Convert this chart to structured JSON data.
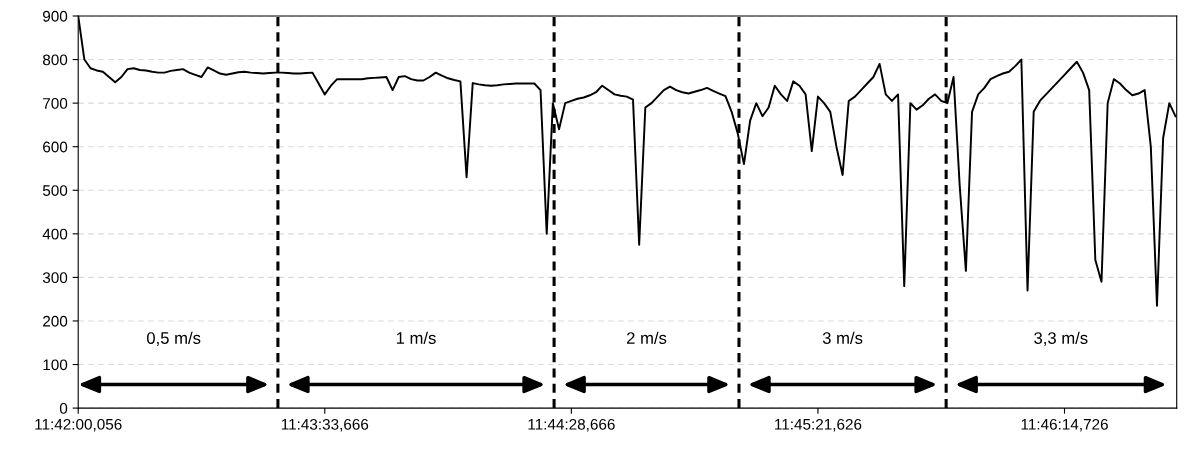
{
  "chart_data": {
    "type": "line",
    "categories": [
      "11:42:00,056",
      null,
      null,
      null,
      null,
      null,
      null,
      null,
      null,
      null,
      null,
      null,
      null,
      null,
      null,
      null,
      null,
      null,
      null,
      null,
      null,
      null,
      null,
      null,
      null,
      null,
      null,
      null,
      null,
      null,
      null,
      null,
      null,
      null,
      null,
      null,
      null,
      null,
      null,
      null,
      "11:43:33,666",
      null,
      null,
      null,
      null,
      null,
      null,
      null,
      null,
      null,
      null,
      null,
      null,
      null,
      null,
      null,
      null,
      null,
      null,
      null,
      null,
      null,
      null,
      null,
      null,
      null,
      null,
      null,
      null,
      null,
      null,
      null,
      null,
      null,
      null,
      null,
      null,
      null,
      null,
      null,
      "11:44:28,666",
      null,
      null,
      null,
      null,
      null,
      null,
      null,
      null,
      null,
      null,
      null,
      null,
      null,
      null,
      null,
      null,
      null,
      null,
      null,
      null,
      null,
      null,
      null,
      null,
      null,
      null,
      null,
      null,
      null,
      null,
      null,
      null,
      null,
      null,
      null,
      null,
      null,
      null,
      null,
      "11:45:21,626",
      null,
      null,
      null,
      null,
      null,
      null,
      null,
      null,
      null,
      null,
      null,
      null,
      null,
      null,
      null,
      null,
      null,
      null,
      null,
      null,
      null,
      null,
      null,
      null,
      null,
      null,
      null,
      null,
      null,
      null,
      null,
      null,
      null,
      null,
      null,
      null,
      null,
      null,
      null,
      "11:46:14,726",
      null,
      null,
      null,
      null,
      null,
      null,
      null,
      null,
      null,
      null,
      null,
      null,
      null,
      null,
      null,
      null,
      null,
      null
    ],
    "series": [
      {
        "color": "#000000",
        "values": [
          900,
          800,
          780,
          775,
          772,
          760,
          748,
          760,
          778,
          780,
          776,
          775,
          772,
          770,
          770,
          774,
          776,
          778,
          770,
          765,
          760,
          782,
          775,
          768,
          765,
          768,
          771,
          772,
          770,
          769,
          768,
          769,
          770,
          770,
          769,
          768,
          768,
          769,
          770,
          745,
          720,
          740,
          755,
          755,
          755,
          755,
          755,
          757,
          758,
          759,
          760,
          730,
          760,
          762,
          755,
          752,
          752,
          760,
          770,
          763,
          757,
          753,
          750,
          530,
          746,
          743,
          741,
          740,
          741,
          743,
          744,
          745,
          745,
          745,
          745,
          730,
          400,
          700,
          640,
          700,
          705,
          710,
          713,
          718,
          725,
          740,
          730,
          720,
          717,
          715,
          708,
          375,
          690,
          700,
          715,
          730,
          738,
          730,
          725,
          722,
          726,
          730,
          735,
          728,
          722,
          716,
          680,
          630,
          560,
          660,
          700,
          670,
          690,
          740,
          720,
          705,
          750,
          740,
          720,
          590,
          715,
          700,
          680,
          600,
          535,
          705,
          715,
          730,
          745,
          760,
          790,
          720,
          705,
          720,
          280,
          700,
          685,
          695,
          710,
          720,
          705,
          700,
          760,
          510,
          315,
          680,
          720,
          735,
          755,
          762,
          768,
          772,
          785,
          800,
          270,
          680,
          705,
          720,
          735,
          750,
          765,
          780,
          795,
          770,
          730,
          340,
          290,
          700,
          755,
          745,
          730,
          718,
          722,
          730,
          600,
          235,
          620,
          700,
          670
        ]
      }
    ],
    "ylim": [
      0,
      900
    ],
    "yticks": [
      0,
      100,
      200,
      300,
      400,
      500,
      600,
      700,
      800,
      900
    ],
    "grid": "y",
    "line_style": "solid",
    "annotations": [
      "0,5 m/s",
      "1 m/s",
      "2 m/s",
      "3 m/s",
      "3,3 m/s"
    ]
  }
}
